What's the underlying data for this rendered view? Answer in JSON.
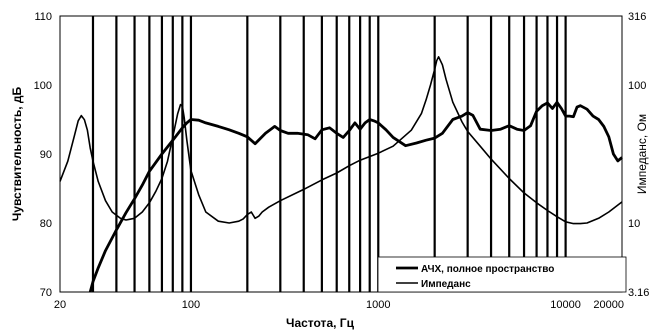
{
  "chart_data": {
    "type": "line",
    "title": "",
    "xlabel": "Частота, Гц",
    "ylabel_left": "Чувствительность, дБ",
    "ylabel_right": "Импеданс, Ом",
    "x_scale": "log",
    "xlim": [
      20,
      20000
    ],
    "ylim_left": [
      70,
      110
    ],
    "ylim_right": [
      3.16,
      316
    ],
    "y_right_scale": "log",
    "x_tick_labels": [
      {
        "value": 20,
        "label": "20"
      },
      {
        "value": 100,
        "label": "100"
      },
      {
        "value": 1000,
        "label": "1000"
      },
      {
        "value": 10000,
        "label": "10000"
      },
      {
        "value": 20000,
        "label": "20000"
      }
    ],
    "y_left_ticks": [
      {
        "value": 70,
        "label": "70"
      },
      {
        "value": 80,
        "label": "80"
      },
      {
        "value": 90,
        "label": "90"
      },
      {
        "value": 100,
        "label": "100"
      },
      {
        "value": 110,
        "label": "110"
      }
    ],
    "y_right_ticks": [
      {
        "value": 3.16,
        "label": "3.16"
      },
      {
        "value": 10,
        "label": "10"
      },
      {
        "value": 100,
        "label": "100"
      },
      {
        "value": 316,
        "label": "316"
      }
    ],
    "vertical_gridlines_hz": [
      30,
      40,
      50,
      60,
      70,
      80,
      90,
      100,
      200,
      300,
      400,
      500,
      600,
      700,
      800,
      900,
      1000,
      2000,
      3000,
      4000,
      5000,
      6000,
      7000,
      8000,
      9000,
      10000
    ],
    "grid": "vertical",
    "legend_placement": "bottom-right",
    "series": [
      {
        "name": "АЧХ, полное пространство",
        "axis": "left",
        "color": "#000000",
        "width": "thick",
        "x": [
          29,
          30,
          32,
          35,
          40,
          45,
          50,
          55,
          60,
          70,
          80,
          90,
          95,
          100,
          110,
          120,
          140,
          160,
          180,
          200,
          220,
          250,
          280,
          300,
          330,
          370,
          420,
          460,
          500,
          550,
          600,
          650,
          700,
          750,
          800,
          850,
          900,
          950,
          1000,
          1100,
          1200,
          1400,
          1600,
          1800,
          2000,
          2200,
          2500,
          2800,
          3000,
          3200,
          3500,
          4000,
          4500,
          5000,
          5500,
          6000,
          6500,
          7000,
          7500,
          8000,
          8500,
          9000,
          9500,
          10000,
          10500,
          11000,
          11500,
          12000,
          13000,
          14000,
          15000,
          16000,
          17000,
          18000,
          19000,
          20000
        ],
        "y": [
          70,
          71.5,
          73.5,
          76,
          79,
          81.5,
          83.5,
          85.5,
          87.5,
          90,
          92,
          93.8,
          94.5,
          95,
          94.9,
          94.5,
          94,
          93.5,
          93,
          92.5,
          91.5,
          93,
          94,
          93.4,
          93,
          93,
          92.8,
          92.2,
          93.5,
          93.8,
          93,
          92.4,
          93.4,
          94.5,
          93.6,
          94.5,
          95,
          94.8,
          94.5,
          93.5,
          92.4,
          91.2,
          91.6,
          92,
          92.3,
          93,
          95,
          95.5,
          96,
          95.6,
          93.6,
          93.4,
          93.6,
          94.1,
          93.6,
          93.4,
          94.1,
          96.2,
          97,
          97.4,
          96.6,
          97.5,
          96.6,
          95.5,
          95.5,
          95.4,
          96.8,
          97,
          96.5,
          95.5,
          95,
          94,
          92.5,
          90,
          89,
          89.5
        ]
      },
      {
        "name": "Импеданс",
        "axis": "right",
        "color": "#000000",
        "width": "thin",
        "x": [
          20,
          22,
          24,
          25,
          26,
          27,
          28,
          29,
          30,
          32,
          35,
          38,
          42,
          45,
          50,
          55,
          60,
          65,
          70,
          75,
          80,
          85,
          88,
          90,
          92,
          95,
          100,
          110,
          120,
          140,
          160,
          180,
          190,
          200,
          210,
          220,
          230,
          240,
          260,
          300,
          400,
          500,
          600,
          700,
          800,
          1000,
          1200,
          1500,
          1700,
          1800,
          1900,
          2000,
          2050,
          2100,
          2200,
          2300,
          2500,
          2800,
          3000,
          3500,
          4000,
          5000,
          6000,
          7000,
          8000,
          9000,
          10000,
          11000,
          12000,
          13000,
          15000,
          17000,
          20000
        ],
        "y": [
          20,
          28,
          44,
          55,
          60,
          56,
          47,
          35,
          28,
          20,
          14.5,
          12,
          10.8,
          10.5,
          10.8,
          12,
          14,
          17,
          21,
          28,
          42,
          62,
          72,
          70,
          58,
          40,
          24,
          16,
          12,
          10.3,
          10,
          10.3,
          10.7,
          11.5,
          12,
          10.8,
          11.2,
          12,
          13,
          14.5,
          17.5,
          20.5,
          23,
          26,
          28.5,
          32,
          36,
          47,
          62,
          78,
          100,
          130,
          150,
          160,
          140,
          110,
          75,
          54,
          46,
          36,
          29,
          21,
          16.5,
          14,
          12.3,
          11.1,
          10.2,
          9.9,
          9.9,
          10,
          10.8,
          12,
          14.2
        ]
      }
    ]
  }
}
